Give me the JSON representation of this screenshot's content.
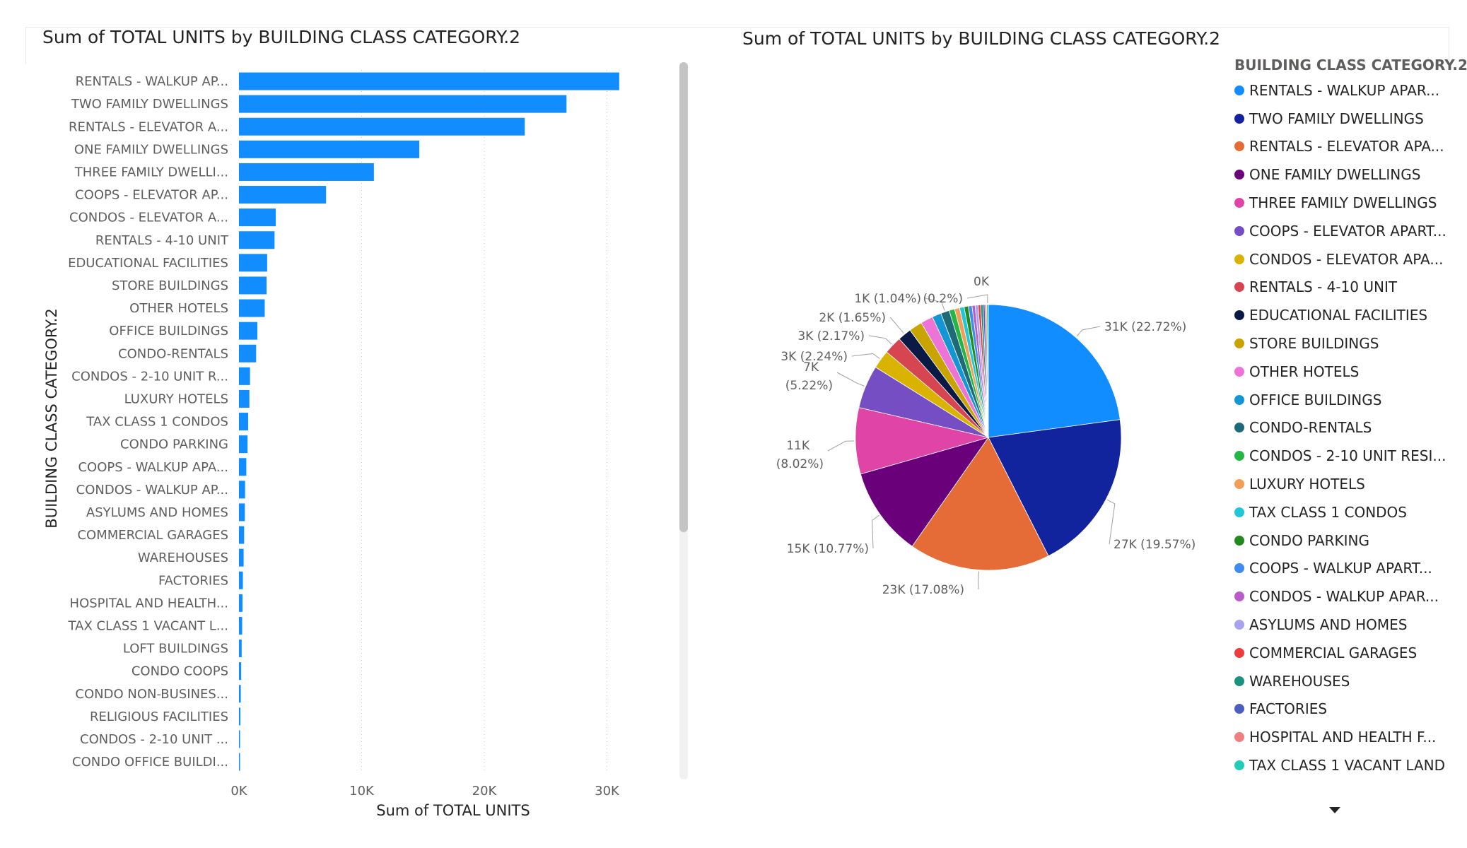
{
  "bar_title": "Sum of TOTAL UNITS by BUILDING CLASS CATEGORY.2",
  "pie_title": "Sum of TOTAL UNITS by BUILDING CLASS CATEGORY.2",
  "legend": {
    "title": "BUILDING CLASS CATEGORY.2",
    "items": [
      {
        "label": "RENTALS - WALKUP APAR...",
        "color": "#118DFF"
      },
      {
        "label": "TWO FAMILY DWELLINGS",
        "color": "#12239E"
      },
      {
        "label": "RENTALS - ELEVATOR APA...",
        "color": "#E66C37"
      },
      {
        "label": "ONE FAMILY DWELLINGS",
        "color": "#6B007B"
      },
      {
        "label": "THREE FAMILY DWELLINGS",
        "color": "#E044A7"
      },
      {
        "label": "COOPS - ELEVATOR APART...",
        "color": "#744EC2"
      },
      {
        "label": "CONDOS - ELEVATOR APA...",
        "color": "#D9B300"
      },
      {
        "label": "RENTALS - 4-10 UNIT",
        "color": "#D64550"
      },
      {
        "label": "EDUCATIONAL FACILITIES",
        "color": "#0A1A45"
      },
      {
        "label": "STORE BUILDINGS",
        "color": "#C9A400"
      },
      {
        "label": "OTHER HOTELS",
        "color": "#EE73D6"
      },
      {
        "label": "OFFICE BUILDINGS",
        "color": "#1596D4"
      },
      {
        "label": "CONDO-RENTALS",
        "color": "#1E6B78"
      },
      {
        "label": "CONDOS - 2-10 UNIT RESI...",
        "color": "#24B545"
      },
      {
        "label": "LUXURY HOTELS",
        "color": "#F29E58"
      },
      {
        "label": "TAX CLASS 1 CONDOS",
        "color": "#23C6D9"
      },
      {
        "label": "CONDO PARKING",
        "color": "#238A1F"
      },
      {
        "label": "COOPS - WALKUP APART...",
        "color": "#3F8CED"
      },
      {
        "label": "CONDOS - WALKUP APAR...",
        "color": "#B75CC8"
      },
      {
        "label": "ASYLUMS AND HOMES",
        "color": "#A9A2F0"
      },
      {
        "label": "COMMERCIAL GARAGES",
        "color": "#EE3D3D"
      },
      {
        "label": "WAREHOUSES",
        "color": "#1B9180"
      },
      {
        "label": "FACTORIES",
        "color": "#4A5FC1"
      },
      {
        "label": "HOSPITAL AND HEALTH F...",
        "color": "#F07F7F"
      },
      {
        "label": "TAX CLASS 1 VACANT LAND",
        "color": "#22CCB7"
      }
    ]
  },
  "chart_data": [
    {
      "type": "bar",
      "orientation": "horizontal",
      "title": "Sum of TOTAL UNITS by BUILDING CLASS CATEGORY.2",
      "xlabel": "Sum of TOTAL UNITS",
      "ylabel": "BUILDING CLASS CATEGORY.2",
      "xlim": [
        0,
        33000
      ],
      "xticks": [
        {
          "value": 0,
          "label": "0K"
        },
        {
          "value": 10000,
          "label": "10K"
        },
        {
          "value": 20000,
          "label": "20K"
        },
        {
          "value": 30000,
          "label": "30K"
        }
      ],
      "grid": true,
      "bar_color": "#118DFF",
      "categories": [
        "RENTALS - WALKUP AP...",
        "TWO FAMILY DWELLINGS",
        "RENTALS - ELEVATOR A...",
        "ONE FAMILY DWELLINGS",
        "THREE FAMILY DWELLI...",
        "COOPS - ELEVATOR AP...",
        "CONDOS - ELEVATOR A...",
        "RENTALS - 4-10 UNIT",
        "EDUCATIONAL FACILITIES",
        "STORE BUILDINGS",
        "OTHER HOTELS",
        "OFFICE BUILDINGS",
        "CONDO-RENTALS",
        "CONDOS - 2-10 UNIT R...",
        "LUXURY HOTELS",
        "TAX CLASS 1 CONDOS",
        "CONDO PARKING",
        "COOPS - WALKUP APA...",
        "CONDOS - WALKUP AP...",
        "ASYLUMS AND HOMES",
        "COMMERCIAL GARAGES",
        "WAREHOUSES",
        "FACTORIES",
        "HOSPITAL AND HEALTH...",
        "TAX CLASS 1 VACANT L...",
        "LOFT BUILDINGS",
        "CONDO COOPS",
        "CONDO NON-BUSINES...",
        "RELIGIOUS FACILITIES",
        "CONDOS - 2-10 UNIT ...",
        "CONDO OFFICE BUILDI..."
      ],
      "values": [
        31000,
        26700,
        23300,
        14700,
        11000,
        7100,
        3000,
        2900,
        2300,
        2250,
        2100,
        1500,
        1400,
        900,
        850,
        750,
        700,
        600,
        500,
        480,
        420,
        380,
        320,
        290,
        260,
        220,
        180,
        150,
        120,
        90,
        70
      ]
    },
    {
      "type": "pie",
      "title": "Sum of TOTAL UNITS by BUILDING CLASS CATEGORY.2",
      "legend_title": "BUILDING CLASS CATEGORY.2",
      "legend_position": "right",
      "slices": [
        {
          "label": "RENTALS - WALKUP APAR...",
          "value": 31000,
          "percent": 22.72,
          "data_label": "31K (22.72%)"
        },
        {
          "label": "TWO FAMILY DWELLINGS",
          "value": 27000,
          "percent": 19.57,
          "data_label": "27K (19.57%)"
        },
        {
          "label": "RENTALS - ELEVATOR APA...",
          "value": 23000,
          "percent": 17.08,
          "data_label": "23K (17.08%)"
        },
        {
          "label": "ONE FAMILY DWELLINGS",
          "value": 15000,
          "percent": 10.77,
          "data_label": "15K (10.77%)"
        },
        {
          "label": "THREE FAMILY DWELLINGS",
          "value": 11000,
          "percent": 8.02,
          "data_label": "11K (8.02%)"
        },
        {
          "label": "COOPS - ELEVATOR APART...",
          "value": 7000,
          "percent": 5.22,
          "data_label": "7K (5.22%)"
        },
        {
          "label": "CONDOS - ELEVATOR APA...",
          "value": 3000,
          "percent": 2.24,
          "data_label": "3K (2.24%)"
        },
        {
          "label": "RENTALS - 4-10 UNIT",
          "value": 3000,
          "percent": 2.17,
          "data_label": "3K (2.17%)"
        },
        {
          "label": "EDUCATIONAL FACILITIES",
          "value": 2000,
          "percent": 1.65,
          "data_label": "2K (1.65%)"
        },
        {
          "label": "STORE BUILDINGS",
          "value": 2000,
          "percent": 1.6
        },
        {
          "label": "OTHER HOTELS",
          "value": 2000,
          "percent": 1.5
        },
        {
          "label": "OFFICE BUILDINGS",
          "value": 1000,
          "percent": 1.1
        },
        {
          "label": "CONDO-RENTALS",
          "value": 1000,
          "percent": 1.04,
          "data_label": "1K (1.04%)"
        },
        {
          "label": "CONDOS - 2-10 UNIT RESI...",
          "value": 1000,
          "percent": 0.66
        },
        {
          "label": "LUXURY HOTELS",
          "value": 1000,
          "percent": 0.62
        },
        {
          "label": "TAX CLASS 1 CONDOS",
          "value": 1000,
          "percent": 0.55
        },
        {
          "label": "CONDO PARKING",
          "value": 1000,
          "percent": 0.51
        },
        {
          "label": "COOPS - WALKUP APART...",
          "value": 0,
          "percent": 0.44
        },
        {
          "label": "CONDOS - WALKUP APAR...",
          "value": 0,
          "percent": 0.37
        },
        {
          "label": "ASYLUMS AND HOMES",
          "value": 0,
          "percent": 0.35
        },
        {
          "label": "COMMERCIAL GARAGES",
          "value": 0,
          "percent": 0.31
        },
        {
          "label": "WAREHOUSES",
          "value": 0,
          "percent": 0.28
        },
        {
          "label": "FACTORIES",
          "value": 0,
          "percent": 0.24
        },
        {
          "label": "HOSPITAL AND HEALTH F...",
          "value": 0,
          "percent": 0.21
        },
        {
          "label": "TAX CLASS 1 VACANT LAND",
          "value": 0,
          "percent": 0.2,
          "data_label": "0K (0.2%)"
        }
      ]
    }
  ]
}
